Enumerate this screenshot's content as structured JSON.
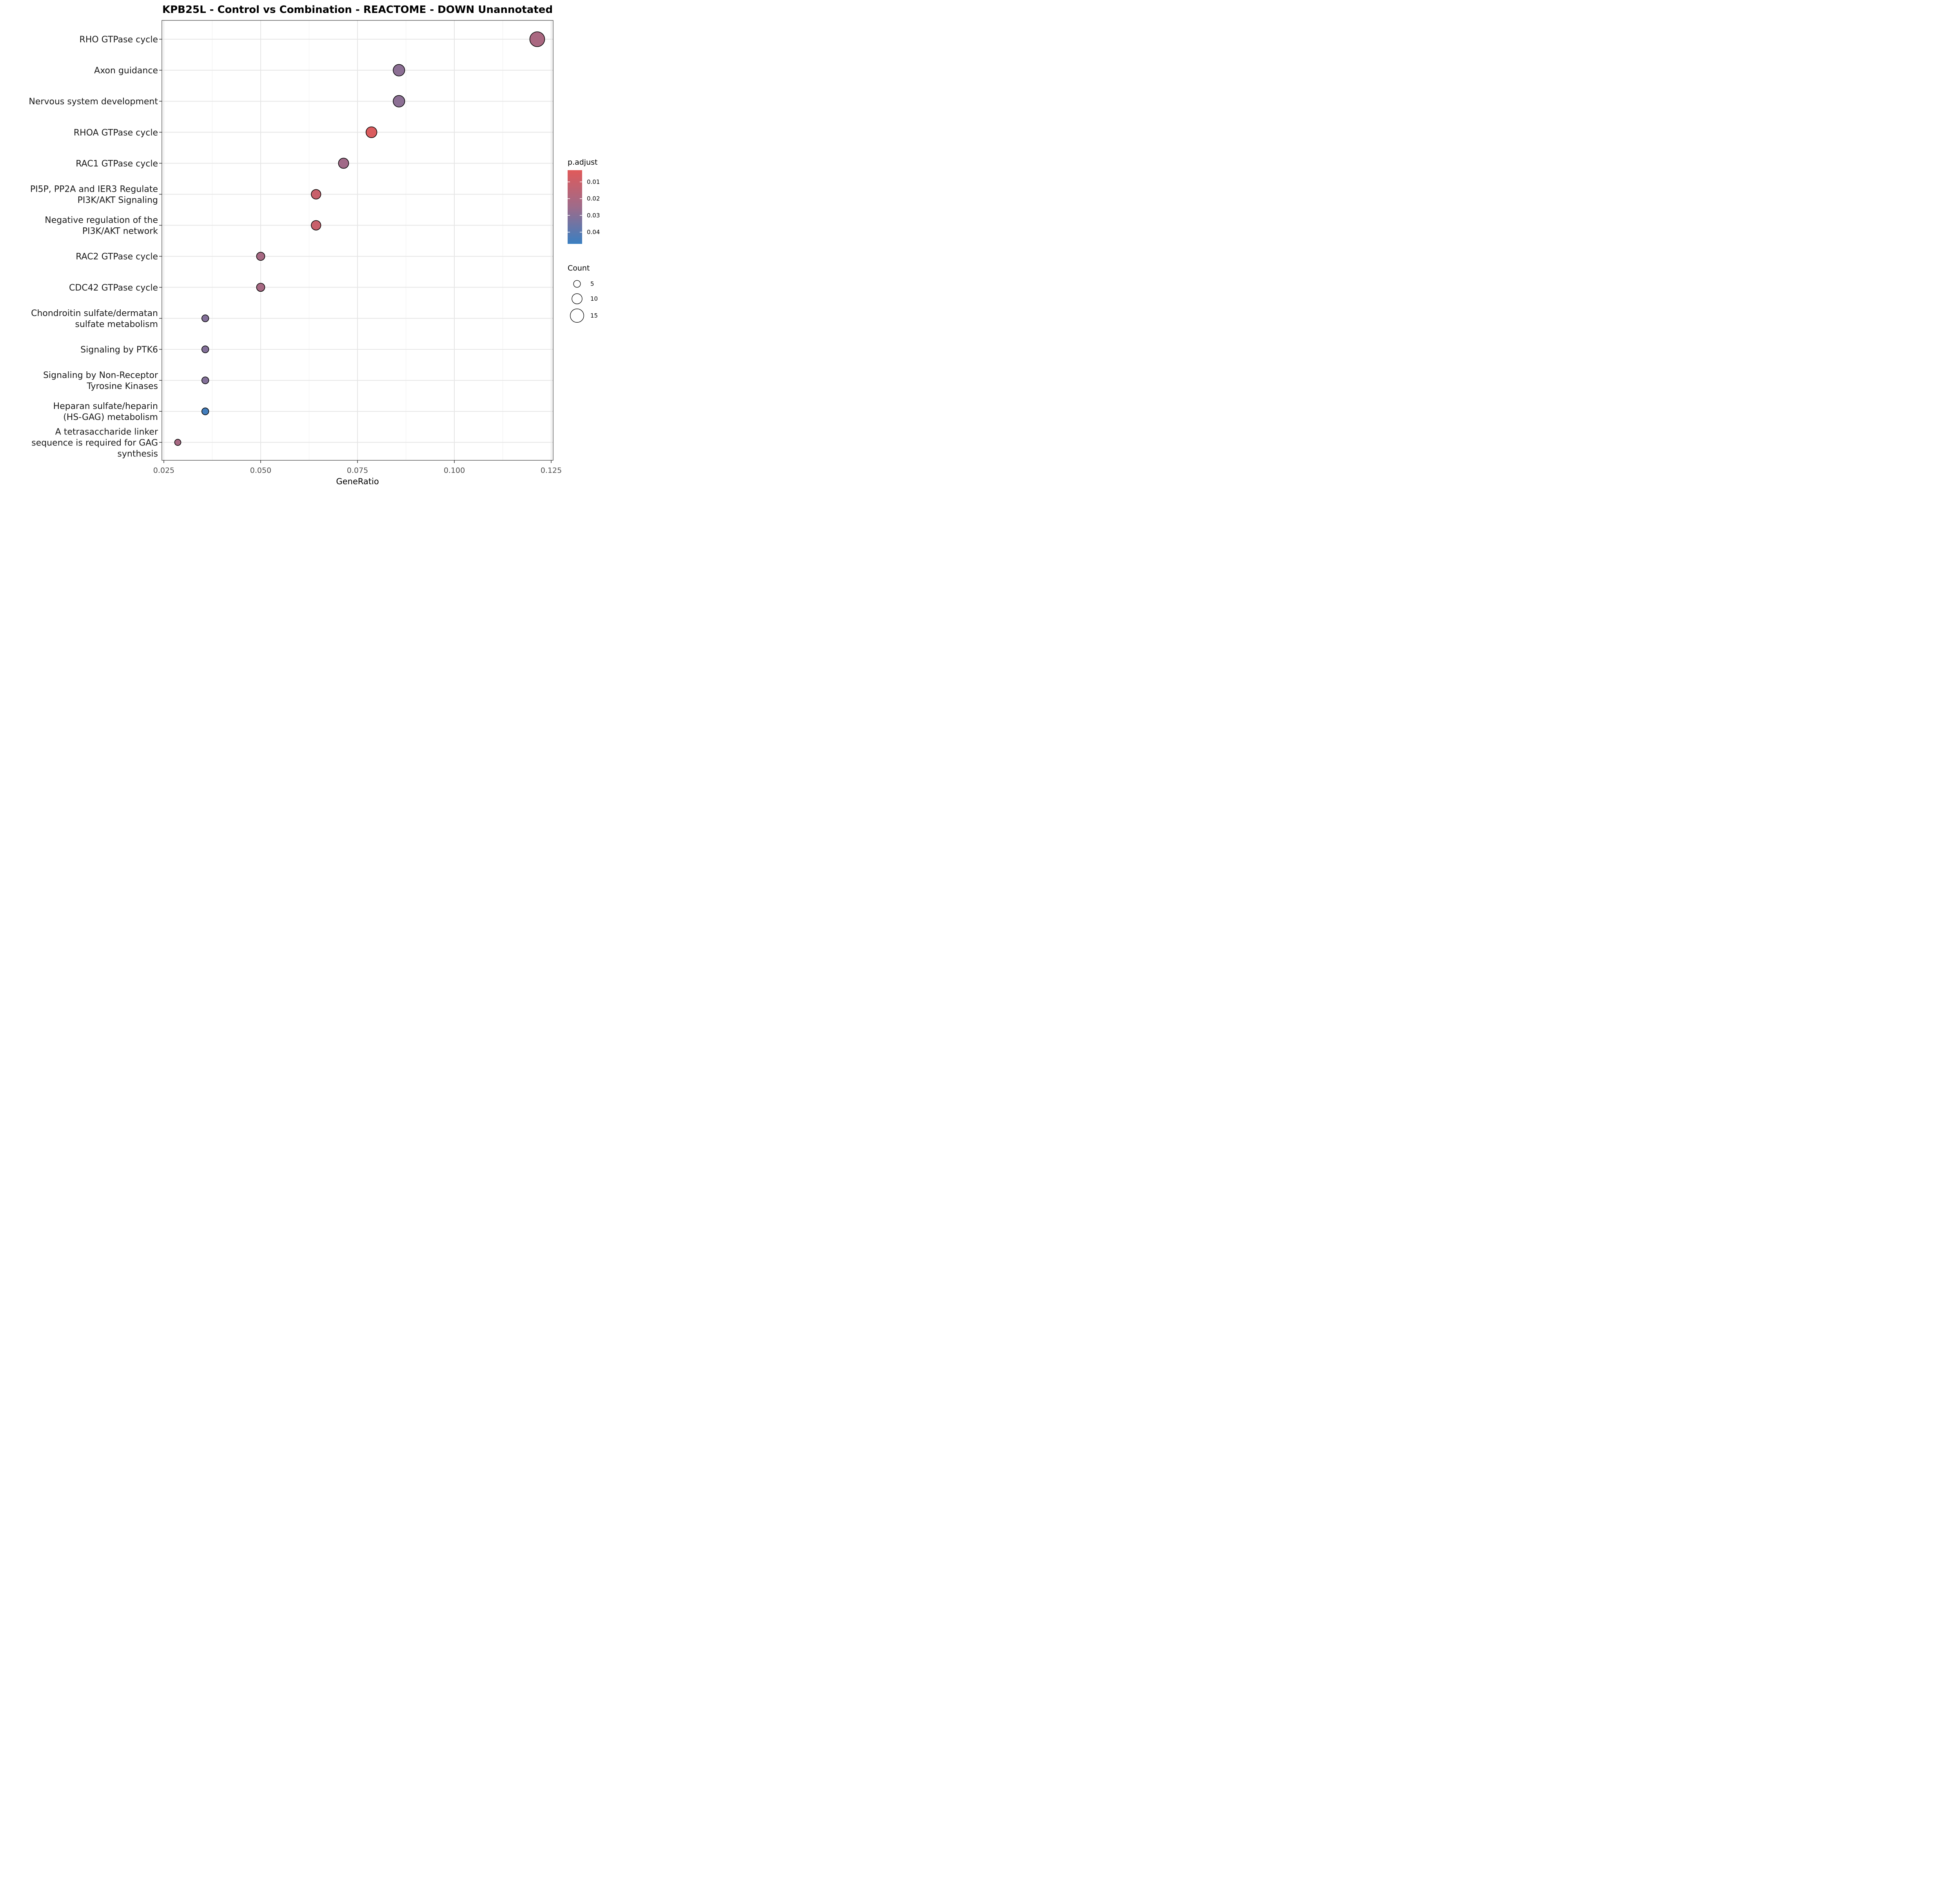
{
  "chart_data": {
    "type": "scatter",
    "title": "KPB25L - Control vs Combination - REACTOME - DOWN Unannotated",
    "xlabel": "GeneRatio",
    "ylabel": "",
    "xlim": [
      0.0245,
      0.1255
    ],
    "xticks": [
      0.025,
      0.05,
      0.075,
      0.1,
      0.125
    ],
    "xtick_labels": [
      "0.025",
      "0.050",
      "0.075",
      "0.100",
      "0.125"
    ],
    "grid": true,
    "legend_position": "right",
    "categories": [
      "RHO GTPase cycle",
      "Axon guidance",
      "Nervous system development",
      "RHOA GTPase cycle",
      "RAC1 GTPase cycle",
      "PI5P, PP2A and IER3 Regulate\nPI3K/AKT Signaling",
      "Negative regulation of the\nPI3K/AKT network",
      "RAC2 GTPase cycle",
      "CDC42 GTPase cycle",
      "Chondroitin sulfate/dermatan\nsulfate metabolism",
      "Signaling by PTK6",
      "Signaling by Non-Receptor\nTyrosine Kinases",
      "Heparan sulfate/heparin\n(HS-GAG) metabolism",
      "A tetrasaccharide linker\nsequence is required for GAG\nsynthesis"
    ],
    "points": [
      {
        "term": "RHO GTPase cycle",
        "gene_ratio": 0.1214,
        "count": 17,
        "p_adjust": 0.021
      },
      {
        "term": "Axon guidance",
        "gene_ratio": 0.0857,
        "count": 12,
        "p_adjust": 0.029
      },
      {
        "term": "Nervous system development",
        "gene_ratio": 0.0857,
        "count": 12,
        "p_adjust": 0.029
      },
      {
        "term": "RHOA GTPase cycle",
        "gene_ratio": 0.0786,
        "count": 11,
        "p_adjust": 0.005
      },
      {
        "term": "RAC1 GTPase cycle",
        "gene_ratio": 0.0714,
        "count": 10,
        "p_adjust": 0.024
      },
      {
        "term": "PI5P, PP2A and IER3 Regulate\nPI3K/AKT Signaling",
        "gene_ratio": 0.0643,
        "count": 9,
        "p_adjust": 0.011
      },
      {
        "term": "Negative regulation of the\nPI3K/AKT network",
        "gene_ratio": 0.0643,
        "count": 9,
        "p_adjust": 0.011
      },
      {
        "term": "RAC2 GTPase cycle",
        "gene_ratio": 0.05,
        "count": 7,
        "p_adjust": 0.022
      },
      {
        "term": "CDC42 GTPase cycle",
        "gene_ratio": 0.05,
        "count": 7,
        "p_adjust": 0.022
      },
      {
        "term": "Chondroitin sulfate/dermatan\nsulfate metabolism",
        "gene_ratio": 0.0357,
        "count": 5,
        "p_adjust": 0.031
      },
      {
        "term": "Signaling by PTK6",
        "gene_ratio": 0.0357,
        "count": 5,
        "p_adjust": 0.031
      },
      {
        "term": "Signaling by Non-Receptor\nTyrosine Kinases",
        "gene_ratio": 0.0357,
        "count": 5,
        "p_adjust": 0.031
      },
      {
        "term": "Heparan sulfate/heparin\n(HS-GAG) metabolism",
        "gene_ratio": 0.0357,
        "count": 5,
        "p_adjust": 0.045
      },
      {
        "term": "A tetrasaccharide linker\nsequence is required for GAG\nsynthesis",
        "gene_ratio": 0.0286,
        "count": 4,
        "p_adjust": 0.022
      }
    ],
    "color_legend": {
      "title": "p.adjust",
      "range": [
        0.003,
        0.047
      ],
      "low_color": "#e05a5a",
      "mid_color": "#9e6b8a",
      "high_color": "#3a7fc1",
      "ticks": [
        0.01,
        0.02,
        0.03,
        0.04
      ],
      "tick_labels": [
        "0.01",
        "0.02",
        "0.03",
        "0.04"
      ]
    },
    "size_legend": {
      "title": "Count",
      "values": [
        5,
        10,
        15
      ],
      "labels": [
        "5",
        "10",
        "15"
      ],
      "range": [
        4,
        17
      ]
    }
  }
}
